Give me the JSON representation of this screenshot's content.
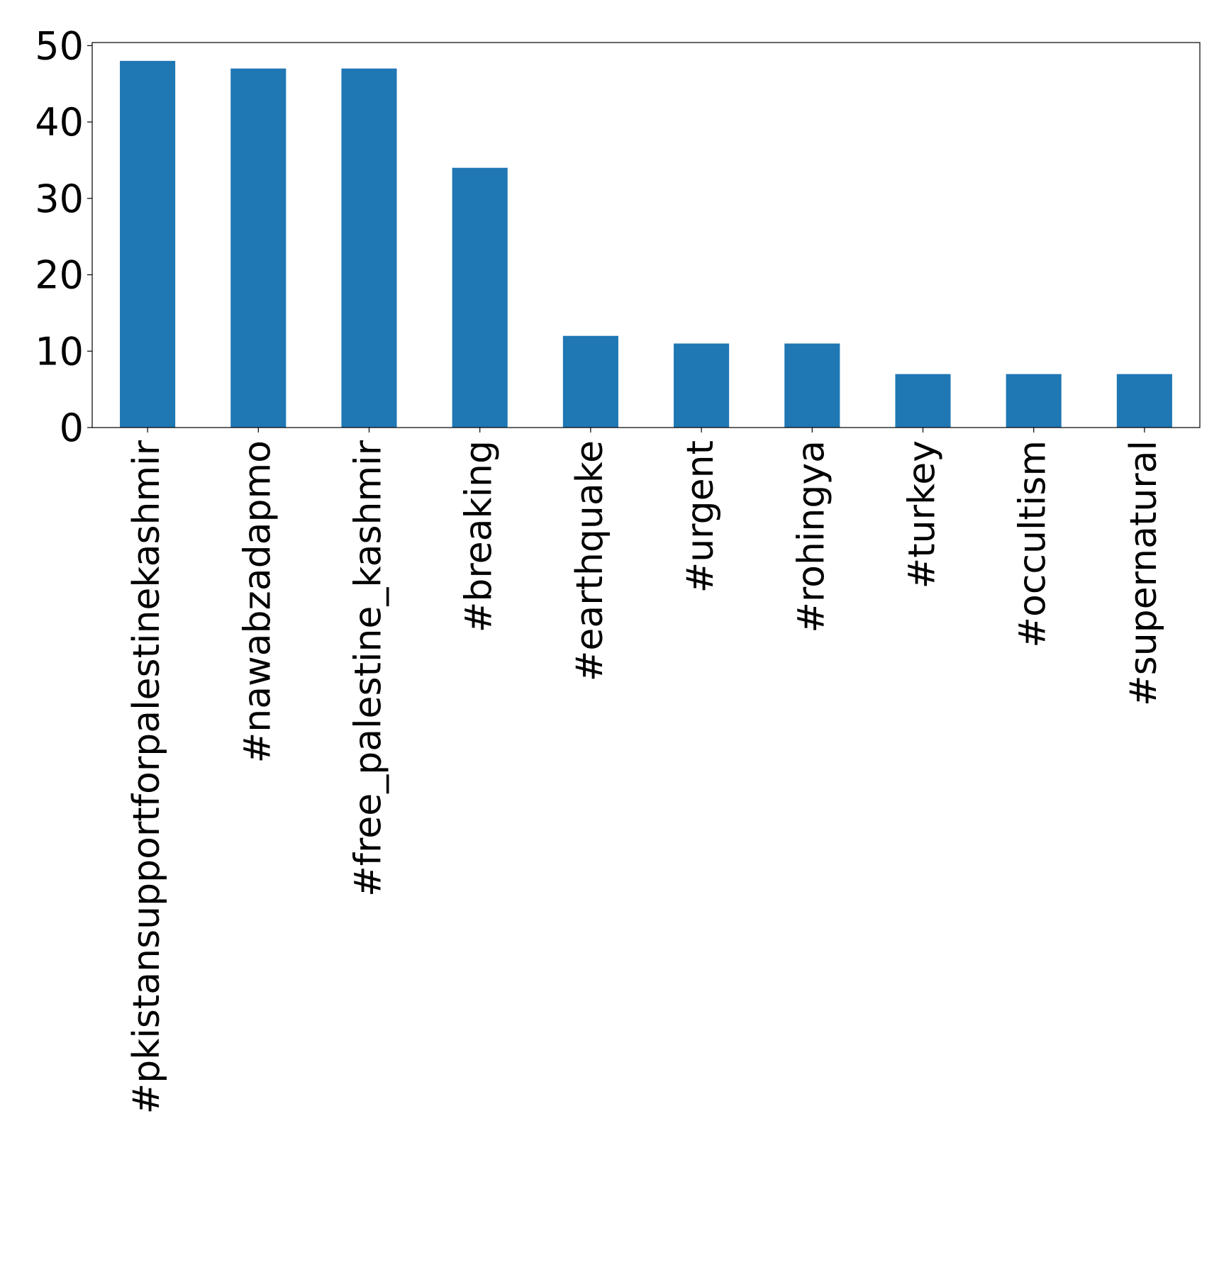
{
  "chart_data": {
    "type": "bar",
    "categories": [
      "#pkistansupportforpalestinekashmir",
      "#nawabzadapmo",
      "#free_palestine_kashmir",
      "#breaking",
      "#earthquake",
      "#urgent",
      "#rohingya",
      "#turkey",
      "#occultism",
      "#supernatural"
    ],
    "values": [
      48,
      47,
      47,
      34,
      12,
      11,
      11,
      7,
      7,
      7
    ],
    "ylim": [
      0,
      50.4
    ],
    "yticks": [
      0,
      10,
      20,
      30,
      40,
      50
    ],
    "grid": false,
    "legend": "none",
    "bar_color": "#1f77b4"
  }
}
